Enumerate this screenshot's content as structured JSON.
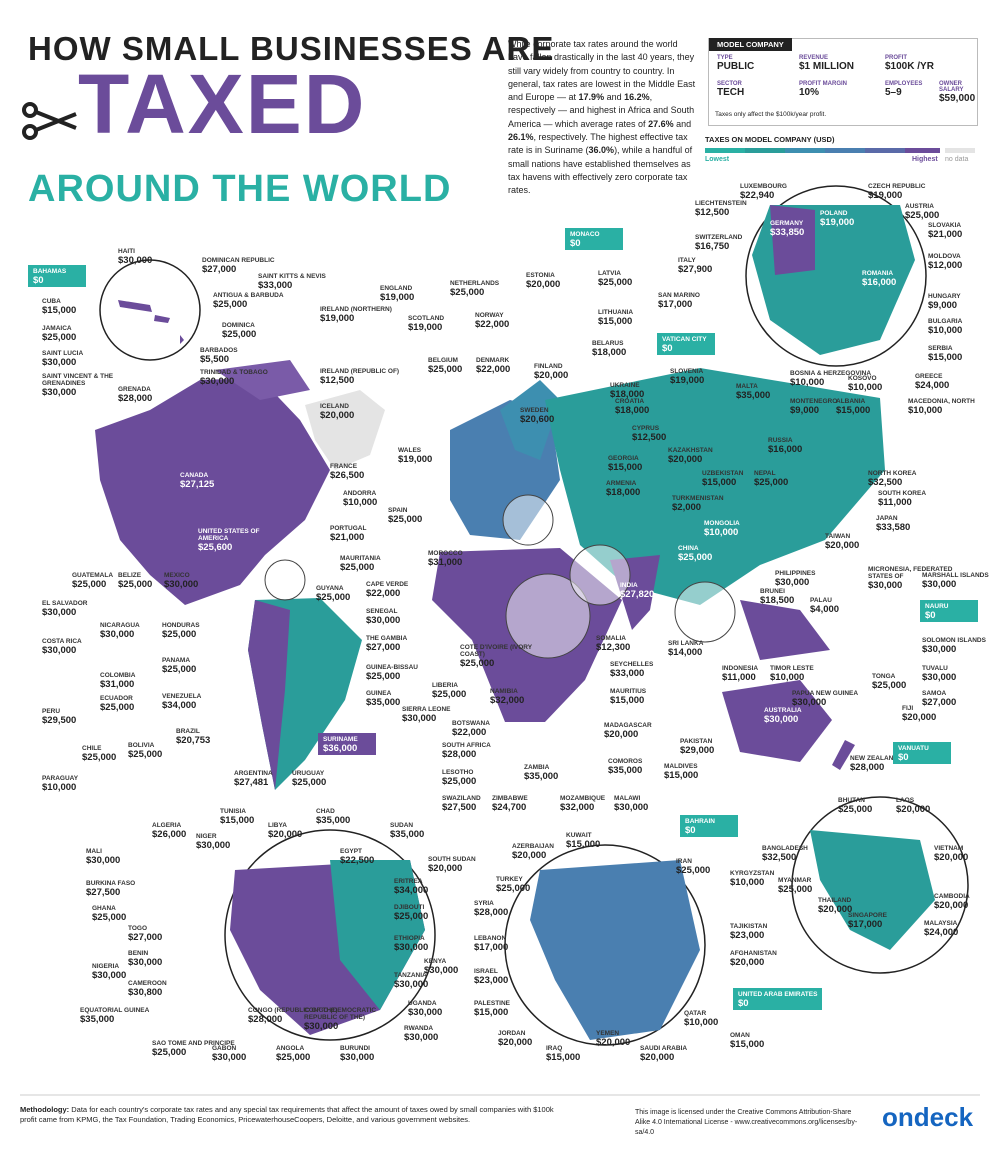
{
  "header": {
    "line1": "HOW SMALL BUSINESSES ARE",
    "main": "TAXED",
    "line3": "AROUND THE WORLD"
  },
  "intro": [
    "While corporate tax rates around the world have fallen drastically in the last 40 years, they still vary widely from country to country. In general, tax rates are lowest in the Middle East and Europe — at ",
    "17.9%",
    " and ",
    "16.2%",
    ", respectively — and highest in Africa and South America — which average rates of ",
    "27.6%",
    " and ",
    "26.1%",
    ", respectively. The highest effective tax rate is in Suriname (",
    "36.0%",
    "), while a handful of small nations have established themselves as tax havens with effectively zero corporate tax rates."
  ],
  "model": {
    "title": "MODEL COMPANY",
    "fields": [
      {
        "label": "TYPE",
        "value": "PUBLIC"
      },
      {
        "label": "REVENUE",
        "value": "$1 MILLION"
      },
      {
        "label": "PROFIT",
        "value": "$100K /YR"
      },
      {
        "label": "SECTOR",
        "value": "TECH"
      },
      {
        "label": "PROFIT MARGIN",
        "value": "10%"
      },
      {
        "label": "EMPLOYEES",
        "value": "5–9"
      },
      {
        "label": "OWNER SALARY",
        "value": "$59,000"
      }
    ],
    "note": "Taxes only affect the $100k/year profit."
  },
  "legend": {
    "title": "TAXES ON MODEL COMPANY (USD)",
    "low": "Lowest",
    "high": "Highest",
    "no_data": "no data"
  },
  "countries": [
    [
      "HAITI",
      "$30,000"
    ],
    [
      "DOMINICAN REPUBLIC",
      "$27,000"
    ],
    [
      "SAINT KITTS & NEVIS",
      "$33,000"
    ],
    [
      "ANTIGUA & BARBUDA",
      "$25,000"
    ],
    [
      "DOMINICA",
      "$25,000"
    ],
    [
      "CUBA",
      "$15,000"
    ],
    [
      "JAMAICA",
      "$25,000"
    ],
    [
      "SAINT LUCIA",
      "$30,000"
    ],
    [
      "SAINT VINCENT & THE GRENADINES",
      "$30,000"
    ],
    [
      "BARBADOS",
      "$5,500"
    ],
    [
      "TRINIDAD & TOBAGO",
      "$30,000"
    ],
    [
      "GRENADA",
      "$28,000"
    ],
    [
      "ENGLAND",
      "$19,000"
    ],
    [
      "NETHERLANDS",
      "$25,000"
    ],
    [
      "IRELAND (NORTHERN)",
      "$19,000"
    ],
    [
      "SCOTLAND",
      "$19,000"
    ],
    [
      "NORWAY",
      "$22,000"
    ],
    [
      "ESTONIA",
      "$20,000"
    ],
    [
      "LATVIA",
      "$25,000"
    ],
    [
      "LITHUANIA",
      "$15,000"
    ],
    [
      "BELARUS",
      "$18,000"
    ],
    [
      "BELGIUM",
      "$25,000"
    ],
    [
      "DENMARK",
      "$22,000"
    ],
    [
      "FINLAND",
      "$20,000"
    ],
    [
      "IRELAND (REPUBLIC OF)",
      "$12,500"
    ],
    [
      "UKRAINE",
      "$18,000"
    ],
    [
      "ICELAND",
      "$20,000"
    ],
    [
      "SWEDEN",
      "$20,600"
    ],
    [
      "WALES",
      "$19,000"
    ],
    [
      "FRANCE",
      "$26,500"
    ],
    [
      "ANDORRA",
      "$10,000"
    ],
    [
      "SPAIN",
      "$25,000"
    ],
    [
      "PORTUGAL",
      "$21,000"
    ],
    [
      "MAURITANIA",
      "$25,000"
    ],
    [
      "MOROCCO",
      "$31,000"
    ],
    [
      "CAPE VERDE",
      "$22,000"
    ],
    [
      "SENEGAL",
      "$30,000"
    ],
    [
      "THE GAMBIA",
      "$27,000"
    ],
    [
      "GUINEA-BISSAU",
      "$25,000"
    ],
    [
      "GUINEA",
      "$35,000"
    ],
    [
      "LIBERIA",
      "$25,000"
    ],
    [
      "SIERRA LEONE",
      "$30,000"
    ],
    [
      "COTE D'IVOIRE (IVORY COAST)",
      "$25,000"
    ],
    [
      "SOMALIA",
      "$12,300"
    ],
    [
      "SEYCHELLES",
      "$33,000"
    ],
    [
      "MAURITIUS",
      "$15,000"
    ],
    [
      "NAMIBIA",
      "$32,000"
    ],
    [
      "BOTSWANA",
      "$22,000"
    ],
    [
      "MADAGASCAR",
      "$20,000"
    ],
    [
      "SOUTH AFRICA",
      "$28,000"
    ],
    [
      "COMOROS",
      "$35,000"
    ],
    [
      "LESOTHO",
      "$25,000"
    ],
    [
      "ZAMBIA",
      "$35,000"
    ],
    [
      "SWAZILAND",
      "$27,500"
    ],
    [
      "ZIMBABWE",
      "$24,700"
    ],
    [
      "MOZAMBIQUE",
      "$32,000"
    ],
    [
      "MALAWI",
      "$30,000"
    ],
    [
      "CROATIA",
      "$18,000"
    ],
    [
      "GEORGIA",
      "$15,000"
    ],
    [
      "ARMENIA",
      "$18,000"
    ],
    [
      "CYPRUS",
      "$12,500"
    ],
    [
      "KAZAKHSTAN",
      "$20,000"
    ],
    [
      "UZBEKISTAN",
      "$15,000"
    ],
    [
      "TURKMENISTAN",
      "$2,000"
    ],
    [
      "RUSSIA",
      "$16,000"
    ],
    [
      "NEPAL",
      "$25,000"
    ],
    [
      "MONGOLIA",
      "$10,000"
    ],
    [
      "CHINA",
      "$25,000"
    ],
    [
      "INDIA",
      "$27,820"
    ],
    [
      "NORTH KOREA",
      "$32,500"
    ],
    [
      "SOUTH KOREA",
      "$11,000"
    ],
    [
      "JAPAN",
      "$33,580"
    ],
    [
      "TAIWAN",
      "$20,000"
    ],
    [
      "PHILIPPINES",
      "$30,000"
    ],
    [
      "MICRONESIA, FEDERATED STATES OF",
      "$30,000"
    ],
    [
      "MARSHALL ISLANDS",
      "$30,000"
    ],
    [
      "BRUNEI",
      "$18,500"
    ],
    [
      "PALAU",
      "$4,000"
    ],
    [
      "SOLOMON ISLANDS",
      "$30,000"
    ],
    [
      "SRI LANKA",
      "$14,000"
    ],
    [
      "INDONESIA",
      "$11,000"
    ],
    [
      "TIMOR LESTE",
      "$10,000"
    ],
    [
      "TUVALU",
      "$30,000"
    ],
    [
      "TONGA",
      "$25,000"
    ],
    [
      "SAMOA",
      "$27,000"
    ],
    [
      "PAPUA NEW GUINEA",
      "$30,000"
    ],
    [
      "FIJI",
      "$20,000"
    ],
    [
      "AUSTRALIA",
      "$30,000"
    ],
    [
      "PAKISTAN",
      "$29,000"
    ],
    [
      "NEW ZEALAND",
      "$28,000"
    ],
    [
      "MALDIVES",
      "$15,000"
    ],
    [
      "LUXEMBOURG",
      "$22,940"
    ],
    [
      "CZECH REPUBLIC",
      "$19,000"
    ],
    [
      "LIECHTENSTEIN",
      "$12,500"
    ],
    [
      "AUSTRIA",
      "$25,000"
    ],
    [
      "GERMANY",
      "$33,850"
    ],
    [
      "POLAND",
      "$19,000"
    ],
    [
      "SLOVAKIA",
      "$21,000"
    ],
    [
      "SWITZERLAND",
      "$16,750"
    ],
    [
      "MOLDOVA",
      "$12,000"
    ],
    [
      "ITALY",
      "$27,900"
    ],
    [
      "ROMANIA",
      "$16,000"
    ],
    [
      "HUNGARY",
      "$9,000"
    ],
    [
      "SAN MARINO",
      "$17,000"
    ],
    [
      "BULGARIA",
      "$10,000"
    ],
    [
      "SERBIA",
      "$15,000"
    ],
    [
      "SLOVENIA",
      "$19,000"
    ],
    [
      "MALTA",
      "$35,000"
    ],
    [
      "BOSNIA & HERZEGOVINA",
      "$10,000"
    ],
    [
      "KOSOVO",
      "$10,000"
    ],
    [
      "GREECE",
      "$24,000"
    ],
    [
      "MONTENEGRO",
      "$9,000"
    ],
    [
      "ALBANIA",
      "$15,000"
    ],
    [
      "MACEDONIA, NORTH",
      "$10,000"
    ],
    [
      "CANADA",
      "$27,125"
    ],
    [
      "UNITED STATES OF AMERICA",
      "$25,600"
    ],
    [
      "GUATEMALA",
      "$25,000"
    ],
    [
      "BELIZE",
      "$25,000"
    ],
    [
      "MEXICO",
      "$30,000"
    ],
    [
      "GUYANA",
      "$25,000"
    ],
    [
      "EL SALVADOR",
      "$30,000"
    ],
    [
      "NICARAGUA",
      "$30,000"
    ],
    [
      "HONDURAS",
      "$25,000"
    ],
    [
      "COSTA RICA",
      "$30,000"
    ],
    [
      "PANAMA",
      "$25,000"
    ],
    [
      "COLOMBIA",
      "$31,000"
    ],
    [
      "ECUADOR",
      "$25,000"
    ],
    [
      "VENEZUELA",
      "$34,000"
    ],
    [
      "PERU",
      "$29,500"
    ],
    [
      "BRAZIL",
      "$20,753"
    ],
    [
      "CHILE",
      "$25,000"
    ],
    [
      "BOLIVIA",
      "$25,000"
    ],
    [
      "ARGENTINA",
      "$27,481"
    ],
    [
      "URUGUAY",
      "$25,000"
    ],
    [
      "PARAGUAY",
      "$10,000"
    ],
    [
      "TUNISIA",
      "$15,000"
    ],
    [
      "CHAD",
      "$35,000"
    ],
    [
      "ALGERIA",
      "$26,000"
    ],
    [
      "LIBYA",
      "$20,000"
    ],
    [
      "SUDAN",
      "$35,000"
    ],
    [
      "NIGER",
      "$30,000"
    ],
    [
      "MALI",
      "$30,000"
    ],
    [
      "EGYPT",
      "$22,500"
    ],
    [
      "SOUTH SUDAN",
      "$20,000"
    ],
    [
      "BURKINA FASO",
      "$27,500"
    ],
    [
      "ERITREA",
      "$34,000"
    ],
    [
      "DJIBOUTI",
      "$25,000"
    ],
    [
      "GHANA",
      "$25,000"
    ],
    [
      "TOGO",
      "$27,000"
    ],
    [
      "ETHIOPIA",
      "$30,000"
    ],
    [
      "BENIN",
      "$30,000"
    ],
    [
      "KENYA",
      "$30,000"
    ],
    [
      "NIGERIA",
      "$30,000"
    ],
    [
      "CAMEROON",
      "$30,800"
    ],
    [
      "TANZANIA",
      "$30,000"
    ],
    [
      "UGANDA",
      "$30,000"
    ],
    [
      "EQUATORIAL GUINEA",
      "$35,000"
    ],
    [
      "CONGO (REPUBLIC OF THE)",
      "$28,000"
    ],
    [
      "CONGO (DEMOCRATIC REPUBLIC OF THE)",
      "$30,000"
    ],
    [
      "RWANDA",
      "$30,000"
    ],
    [
      "SAO TOME AND PRINCIPE",
      "$25,000"
    ],
    [
      "GABON",
      "$30,000"
    ],
    [
      "ANGOLA",
      "$25,000"
    ],
    [
      "BURUNDI",
      "$30,000"
    ],
    [
      "AZERBAIJAN",
      "$20,000"
    ],
    [
      "KUWAIT",
      "$15,000"
    ],
    [
      "TURKEY",
      "$25,000"
    ],
    [
      "IRAN",
      "$25,000"
    ],
    [
      "KYRGYZSTAN",
      "$10,000"
    ],
    [
      "SYRIA",
      "$28,000"
    ],
    [
      "LEBANON",
      "$17,000"
    ],
    [
      "TAJIKISTAN",
      "$23,000"
    ],
    [
      "AFGHANISTAN",
      "$20,000"
    ],
    [
      "ISRAEL",
      "$23,000"
    ],
    [
      "PALESTINE",
      "$15,000"
    ],
    [
      "QATAR",
      "$10,000"
    ],
    [
      "JORDAN",
      "$20,000"
    ],
    [
      "YEMEN",
      "$20,000"
    ],
    [
      "OMAN",
      "$15,000"
    ],
    [
      "IRAQ",
      "$15,000"
    ],
    [
      "SAUDI ARABIA",
      "$20,000"
    ],
    [
      "BHUTAN",
      "$25,000"
    ],
    [
      "LAOS",
      "$20,000"
    ],
    [
      "BANGLADESH",
      "$32,500"
    ],
    [
      "VIETNAM",
      "$20,000"
    ],
    [
      "MYANMAR",
      "$25,000"
    ],
    [
      "THAILAND",
      "$20,000"
    ],
    [
      "CAMBODIA",
      "$20,000"
    ],
    [
      "SINGAPORE",
      "$17,000"
    ],
    [
      "MALAYSIA",
      "$24,000"
    ]
  ],
  "boxes": [
    [
      "BAHAMAS",
      "$0"
    ],
    [
      "MONACO",
      "$0"
    ],
    [
      "VATICAN CITY",
      "$0"
    ],
    [
      "NAURU",
      "$0"
    ],
    [
      "VANUATU",
      "$0"
    ],
    [
      "BAHRAIN",
      "$0"
    ],
    [
      "UNITED ARAB EMIRATES",
      "$0"
    ],
    [
      "SURINAME",
      "$36,000"
    ]
  ],
  "footer": {
    "methodology_label": "Methodology:",
    "methodology": "Data for each country's corporate tax rates and any special tax requirements that affect the amount of taxes owed by small companies with $100k profit came from KPMG, the Tax Foundation, Trading Economics, PricewaterhouseCoopers, Deloitte, and various government websites.",
    "license": "This image is licensed under the Creative Commons Attribution-Share Alike 4.0 International License - www.creativecommons.org/licenses/by-sa/4.0",
    "logo": "ondeck"
  }
}
